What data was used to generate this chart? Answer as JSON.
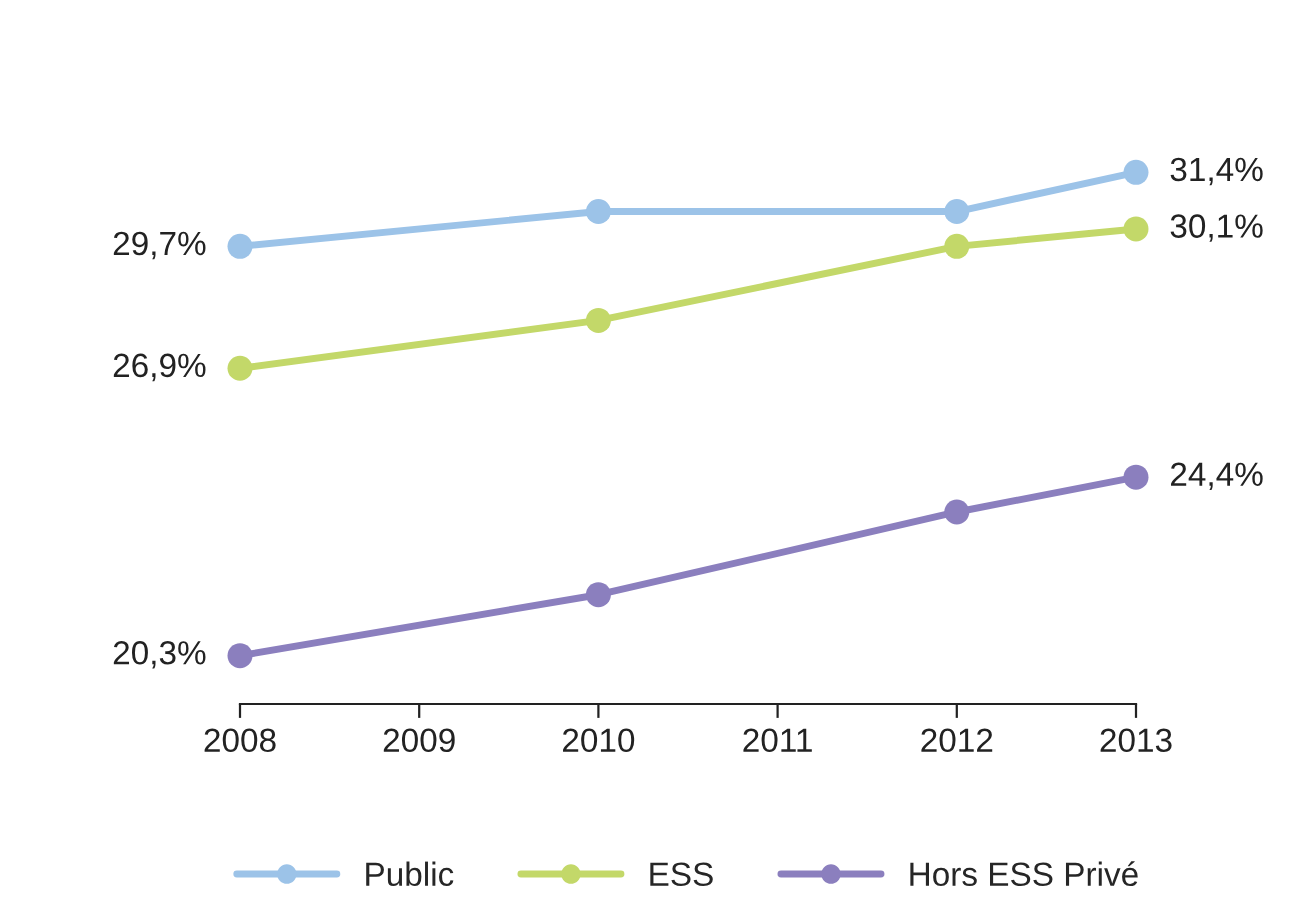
{
  "chart_data": {
    "type": "line",
    "x": [
      2008,
      2010,
      2012,
      2013
    ],
    "series": [
      {
        "name": "Public",
        "color": "#9cc3e8",
        "values": [
          29.7,
          30.5,
          30.5,
          31.4
        ],
        "value_labels": [
          "29,7%",
          null,
          null,
          "31,4%"
        ]
      },
      {
        "name": "ESS",
        "color": "#c3d869",
        "values": [
          26.9,
          28.0,
          29.7,
          30.1
        ],
        "value_labels": [
          "26,9%",
          null,
          null,
          "30,1%"
        ]
      },
      {
        "name": "Hors ESS Privé",
        "color": "#8b7fbe",
        "values": [
          20.3,
          21.7,
          23.6,
          24.4
        ],
        "value_labels": [
          "20,3%",
          null,
          null,
          "24,4%"
        ]
      }
    ],
    "xlim": [
      2008,
      2013
    ],
    "xticks": [
      2008,
      2009,
      2010,
      2011,
      2012,
      2013
    ],
    "tick_labels": "x",
    "grid": false,
    "legend": "bottom",
    "marker": "circle",
    "line_style": "solid"
  }
}
